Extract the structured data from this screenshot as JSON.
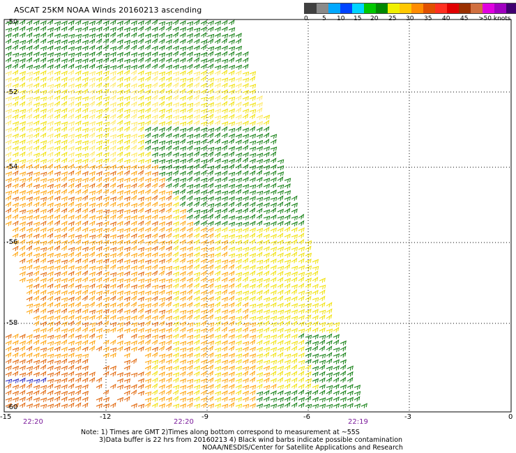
{
  "title": "ASCAT 25KM NOAA Winds 20160213 ascending",
  "scale": {
    "colors": [
      "#404040",
      "#8a8a8a",
      "#00a8ff",
      "#0044ff",
      "#00d4ff",
      "#00c800",
      "#008800",
      "#f0f000",
      "#ffc800",
      "#ff8c00",
      "#e05000",
      "#ff3020",
      "#e00000",
      "#9a3000",
      "#d07040",
      "#e000e0",
      "#a000c0",
      "#400070"
    ],
    "labels": [
      "0",
      "5",
      "10",
      "15",
      "20",
      "25",
      "30",
      "35",
      "40",
      "45",
      ">50 knots"
    ]
  },
  "latitudes": [
    "-50",
    "-52",
    "-54",
    "-56",
    "-58",
    "-60"
  ],
  "longitudes": [
    "-15",
    "-12",
    "-9",
    "-6",
    "-3",
    "0"
  ],
  "times": [
    "22:20",
    "22:20",
    "22:19"
  ],
  "notes": [
    "Note: 1) Times are GMT 2)Times along bottom correspond to measurement at ~55S",
    "3)Data buffer is 22 hrs from 20160213 4) Black wind barbs indicate possible contamination",
    "NOAA/NESDIS/Center for Satellite Applications and Research"
  ],
  "barb_colors": {
    "dark_green": "#0a7a0a",
    "green": "#10a010",
    "yellow": "#f0e000",
    "light_yellow": "#ffe860",
    "orange": "#ffa000",
    "dark_orange": "#e06000",
    "blue": "#2020c0"
  }
}
